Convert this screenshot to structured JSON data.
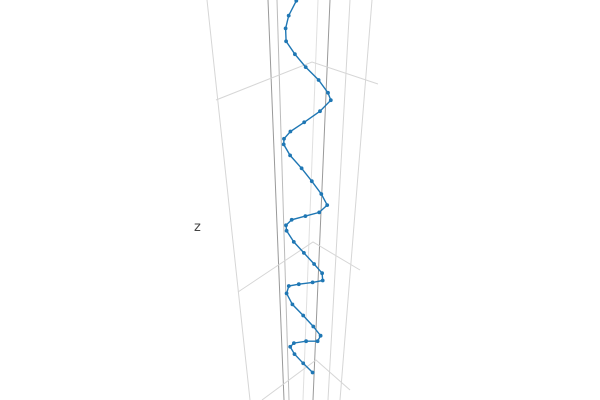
{
  "chart_data": {
    "type": "scatter3d",
    "mode": "lines+markers",
    "zlabel": "z",
    "grid": true,
    "legend": "none",
    "line_color": "#1f77b4",
    "marker_color": "#1f77b4",
    "points": [
      [
        0.3,
        0.33,
        1.82
      ],
      [
        0.22,
        0.34,
        1.74
      ],
      [
        0.1,
        0.36,
        1.66
      ],
      [
        0.04,
        0.39,
        1.59
      ],
      [
        0.02,
        0.44,
        1.52
      ],
      [
        0.08,
        0.56,
        1.45
      ],
      [
        0.18,
        0.66,
        1.38
      ],
      [
        0.3,
        0.78,
        1.31
      ],
      [
        0.38,
        0.88,
        1.24
      ],
      [
        0.42,
        0.88,
        1.2
      ],
      [
        0.32,
        0.78,
        1.14
      ],
      [
        0.18,
        0.62,
        1.08
      ],
      [
        0.06,
        0.48,
        1.03
      ],
      [
        0.0,
        0.42,
        0.99
      ],
      [
        0.04,
        0.34,
        0.96
      ],
      [
        0.12,
        0.36,
        0.9
      ],
      [
        0.22,
        0.48,
        0.83
      ],
      [
        0.3,
        0.6,
        0.76
      ],
      [
        0.36,
        0.74,
        0.69
      ],
      [
        0.4,
        0.82,
        0.63
      ],
      [
        0.33,
        0.74,
        0.59
      ],
      [
        0.22,
        0.58,
        0.57
      ],
      [
        0.1,
        0.44,
        0.55
      ],
      [
        0.04,
        0.4,
        0.52
      ],
      [
        0.06,
        0.38,
        0.49
      ],
      [
        0.14,
        0.42,
        0.43
      ],
      [
        0.22,
        0.54,
        0.37
      ],
      [
        0.3,
        0.66,
        0.31
      ],
      [
        0.36,
        0.76,
        0.26
      ],
      [
        0.38,
        0.74,
        0.22
      ],
      [
        0.3,
        0.62,
        0.21
      ],
      [
        0.18,
        0.48,
        0.2
      ],
      [
        0.08,
        0.4,
        0.19
      ],
      [
        0.06,
        0.38,
        0.15
      ],
      [
        0.12,
        0.42,
        0.09
      ],
      [
        0.22,
        0.52,
        0.03
      ],
      [
        0.3,
        0.64,
        -0.03
      ],
      [
        0.36,
        0.72,
        -0.08
      ],
      [
        0.34,
        0.68,
        -0.11
      ],
      [
        0.24,
        0.56,
        -0.11
      ],
      [
        0.12,
        0.46,
        -0.12
      ],
      [
        0.1,
        0.4,
        -0.14
      ],
      [
        0.14,
        0.44,
        -0.18
      ],
      [
        0.22,
        0.52,
        -0.23
      ],
      [
        0.3,
        0.62,
        -0.28
      ]
    ]
  }
}
